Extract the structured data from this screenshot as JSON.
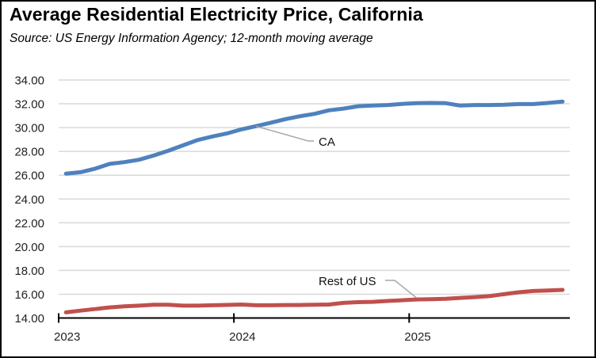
{
  "chart_data": {
    "type": "line",
    "title": "Average Residential Electricity Price, California",
    "subtitle": "Source:  US Energy Information Agency; 12-month moving average",
    "xlabel": "",
    "ylabel": "",
    "ylim": [
      14,
      34
    ],
    "yticks": [
      "14.00",
      "16.00",
      "18.00",
      "20.00",
      "22.00",
      "24.00",
      "26.00",
      "28.00",
      "30.00",
      "32.00",
      "34.00"
    ],
    "ytick_values": [
      14,
      16,
      18,
      20,
      22,
      24,
      26,
      28,
      30,
      32,
      34
    ],
    "grid": true,
    "legend": "none (direct labels)",
    "x": [
      "2023-01",
      "2023-02",
      "2023-03",
      "2023-04",
      "2023-05",
      "2023-06",
      "2023-07",
      "2023-08",
      "2023-09",
      "2023-10",
      "2023-11",
      "2023-12",
      "2024-01",
      "2024-02",
      "2024-03",
      "2024-04",
      "2024-05",
      "2024-06",
      "2024-07",
      "2024-08",
      "2024-09",
      "2024-10",
      "2024-11",
      "2024-12",
      "2025-01",
      "2025-02",
      "2025-03",
      "2025-04",
      "2025-05",
      "2025-06",
      "2025-07",
      "2025-08",
      "2025-09",
      "2025-10",
      "2025-11"
    ],
    "xtick_labels": [
      {
        "label": "2023",
        "index": 0
      },
      {
        "label": "2024",
        "index": 12
      },
      {
        "label": "2025",
        "index": 24
      }
    ],
    "series": [
      {
        "name": "CA",
        "color": "#4F81BD",
        "label_anchor_index": 13,
        "values": [
          26.13,
          26.25,
          26.55,
          26.95,
          27.1,
          27.3,
          27.65,
          28.05,
          28.5,
          28.95,
          29.25,
          29.5,
          29.85,
          30.12,
          30.4,
          30.7,
          30.95,
          31.15,
          31.45,
          31.6,
          31.8,
          31.85,
          31.9,
          31.99,
          32.05,
          32.07,
          32.05,
          31.85,
          31.9,
          31.9,
          31.92,
          31.98,
          31.98,
          32.07,
          32.18
        ]
      },
      {
        "name": "Rest of US",
        "color": "#C0504D",
        "label_anchor_index": 24,
        "values": [
          14.47,
          14.62,
          14.75,
          14.89,
          14.98,
          15.04,
          15.11,
          15.11,
          15.04,
          15.04,
          15.07,
          15.1,
          15.13,
          15.07,
          15.07,
          15.09,
          15.09,
          15.11,
          15.13,
          15.27,
          15.33,
          15.36,
          15.43,
          15.49,
          15.56,
          15.58,
          15.62,
          15.69,
          15.76,
          15.84,
          16.0,
          16.16,
          16.27,
          16.31,
          16.36
        ]
      }
    ]
  },
  "colors": {
    "gridline": "#D9D9D9",
    "axis": "#000000",
    "leader": "#A6A6A6",
    "frame": "#000000"
  }
}
